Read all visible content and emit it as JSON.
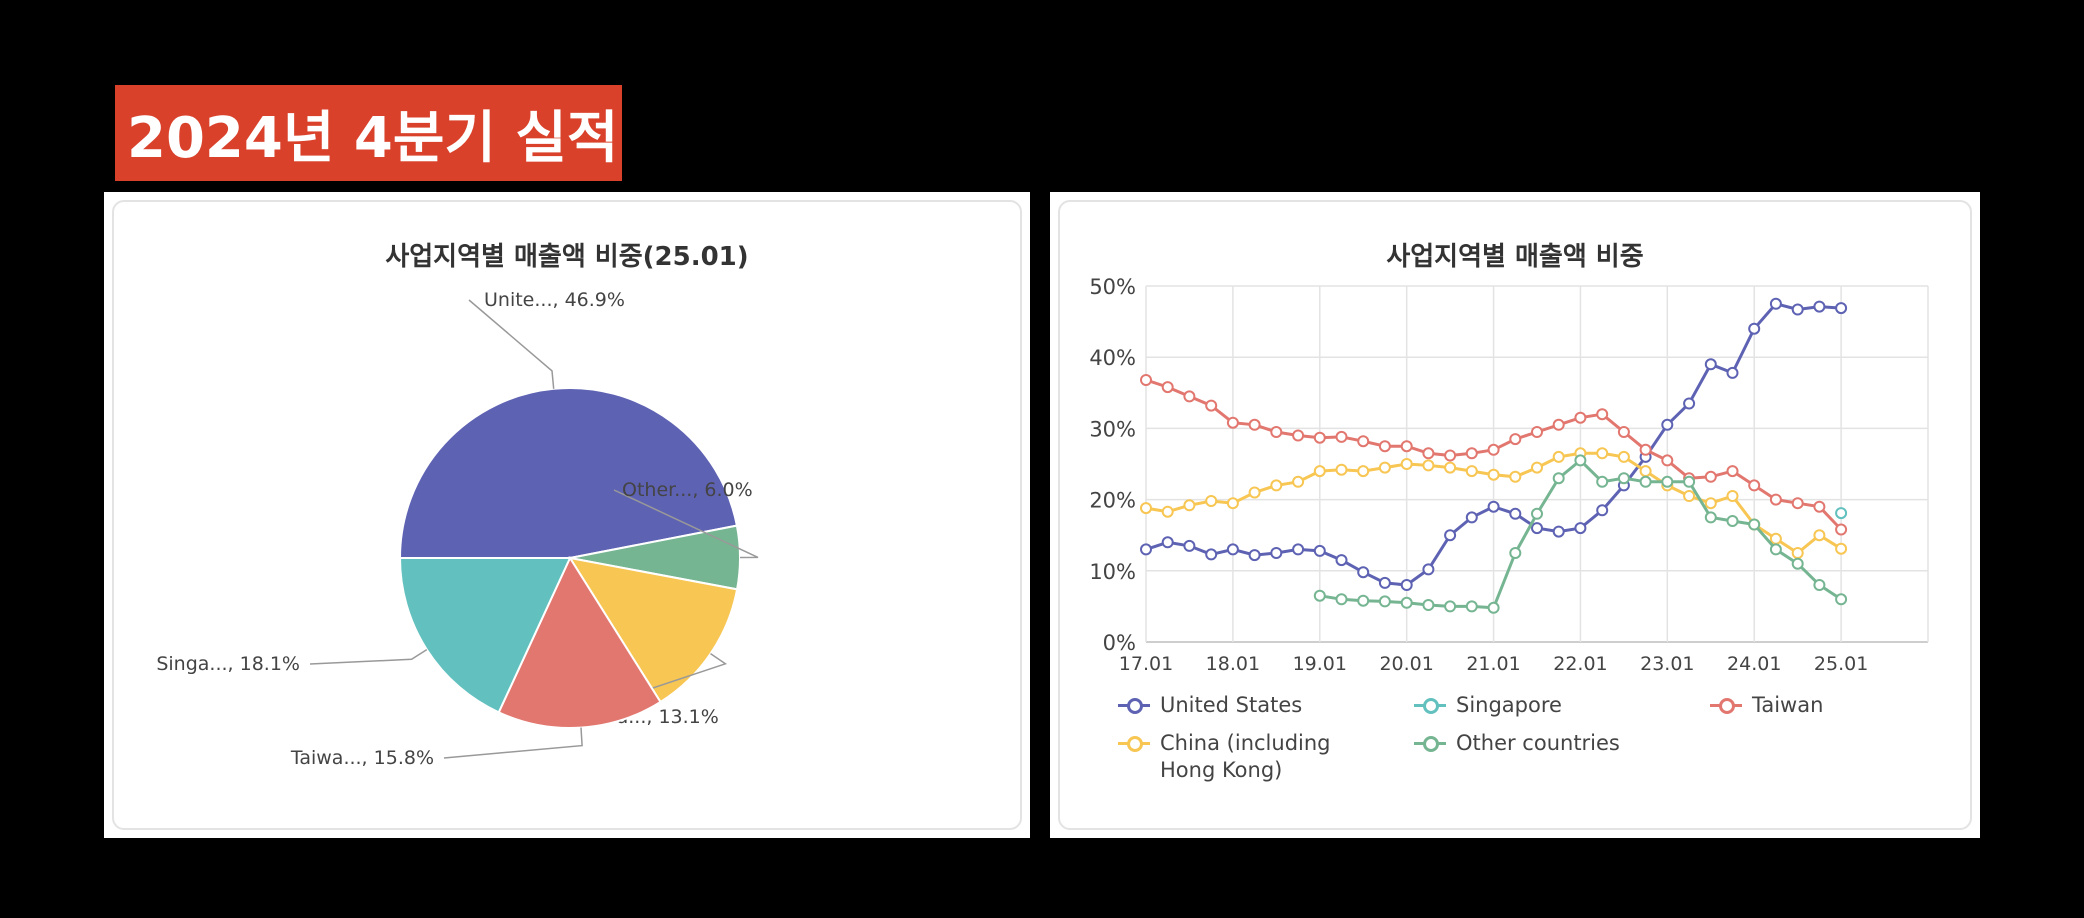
{
  "banner": {
    "title": "2024년 4분기 실적"
  },
  "chart_data": [
    {
      "type": "pie",
      "title": "사업지역별 매출액 비중(25.01)",
      "slices": [
        {
          "label": "Unite...",
          "value": 46.9,
          "display": "Unite..., 46.9%",
          "color": "#5e62b3"
        },
        {
          "label": "Other...",
          "value": 6.0,
          "display": "Other..., 6.0%",
          "color": "#76b592"
        },
        {
          "label": "China...",
          "value": 13.1,
          "display": "China..., 13.1%",
          "color": "#f7c653"
        },
        {
          "label": "Taiwa...",
          "value": 15.8,
          "display": "Taiwa..., 15.8%",
          "color": "#e2776f"
        },
        {
          "label": "Singa...",
          "value": 18.1,
          "display": "Singa..., 18.1%",
          "color": "#62c1bf"
        }
      ]
    },
    {
      "type": "line",
      "title": "사업지역별 매출액 비중",
      "ylim": [
        0,
        50
      ],
      "yticks": [
        "0%",
        "10%",
        "20%",
        "30%",
        "40%",
        "50%"
      ],
      "xticks": [
        "17.01",
        "18.01",
        "19.01",
        "20.01",
        "21.01",
        "22.01",
        "23.01",
        "24.01",
        "25.01"
      ],
      "x_start": 2017.0,
      "x_end": 2026.0,
      "series": [
        {
          "name": "United States",
          "color": "#5e62b3",
          "points": [
            [
              17.0,
              13.0
            ],
            [
              17.25,
              14.0
            ],
            [
              17.5,
              13.5
            ],
            [
              17.75,
              12.3
            ],
            [
              18.0,
              13.0
            ],
            [
              18.25,
              12.2
            ],
            [
              18.5,
              12.5
            ],
            [
              18.75,
              13.0
            ],
            [
              19.0,
              12.8
            ],
            [
              19.25,
              11.5
            ],
            [
              19.5,
              9.8
            ],
            [
              19.75,
              8.3
            ],
            [
              20.0,
              8.0
            ],
            [
              20.25,
              10.2
            ],
            [
              20.5,
              15.0
            ],
            [
              20.75,
              17.5
            ],
            [
              21.0,
              19.0
            ],
            [
              21.25,
              18.0
            ],
            [
              21.5,
              16.0
            ],
            [
              21.75,
              15.5
            ],
            [
              22.0,
              16.0
            ],
            [
              22.25,
              18.5
            ],
            [
              22.5,
              22.0
            ],
            [
              22.75,
              26.0
            ],
            [
              23.0,
              30.5
            ],
            [
              23.25,
              33.5
            ],
            [
              23.5,
              39.0
            ],
            [
              23.75,
              37.8
            ],
            [
              24.0,
              44.0
            ],
            [
              24.25,
              47.5
            ],
            [
              24.5,
              46.7
            ],
            [
              24.75,
              47.1
            ],
            [
              25.0,
              46.9
            ]
          ]
        },
        {
          "name": "Singapore",
          "color": "#62c1bf",
          "points": [
            [
              25.0,
              18.1
            ]
          ]
        },
        {
          "name": "Taiwan",
          "color": "#e2776f",
          "points": [
            [
              17.0,
              36.8
            ],
            [
              17.25,
              35.8
            ],
            [
              17.5,
              34.5
            ],
            [
              17.75,
              33.2
            ],
            [
              18.0,
              30.8
            ],
            [
              18.25,
              30.5
            ],
            [
              18.5,
              29.5
            ],
            [
              18.75,
              29.0
            ],
            [
              19.0,
              28.7
            ],
            [
              19.25,
              28.8
            ],
            [
              19.5,
              28.2
            ],
            [
              19.75,
              27.5
            ],
            [
              20.0,
              27.5
            ],
            [
              20.25,
              26.5
            ],
            [
              20.5,
              26.2
            ],
            [
              20.75,
              26.5
            ],
            [
              21.0,
              27.0
            ],
            [
              21.25,
              28.5
            ],
            [
              21.5,
              29.5
            ],
            [
              21.75,
              30.5
            ],
            [
              22.0,
              31.5
            ],
            [
              22.25,
              32.0
            ],
            [
              22.5,
              29.5
            ],
            [
              22.75,
              27.0
            ],
            [
              23.0,
              25.5
            ],
            [
              23.25,
              23.0
            ],
            [
              23.5,
              23.2
            ],
            [
              23.75,
              24.0
            ],
            [
              24.0,
              22.0
            ],
            [
              24.25,
              20.0
            ],
            [
              24.5,
              19.5
            ],
            [
              24.75,
              19.0
            ],
            [
              25.0,
              15.8
            ]
          ]
        },
        {
          "name": "China (including Hong Kong)",
          "color": "#f7c653",
          "points": [
            [
              17.0,
              18.8
            ],
            [
              17.25,
              18.3
            ],
            [
              17.5,
              19.2
            ],
            [
              17.75,
              19.8
            ],
            [
              18.0,
              19.5
            ],
            [
              18.25,
              21.0
            ],
            [
              18.5,
              22.0
            ],
            [
              18.75,
              22.5
            ],
            [
              19.0,
              24.0
            ],
            [
              19.25,
              24.2
            ],
            [
              19.5,
              24.0
            ],
            [
              19.75,
              24.5
            ],
            [
              20.0,
              25.0
            ],
            [
              20.25,
              24.8
            ],
            [
              20.5,
              24.5
            ],
            [
              20.75,
              24.0
            ],
            [
              21.0,
              23.5
            ],
            [
              21.25,
              23.2
            ],
            [
              21.5,
              24.5
            ],
            [
              21.75,
              26.0
            ],
            [
              22.0,
              26.5
            ],
            [
              22.25,
              26.5
            ],
            [
              22.5,
              26.0
            ],
            [
              22.75,
              24.0
            ],
            [
              23.0,
              22.0
            ],
            [
              23.25,
              20.5
            ],
            [
              23.5,
              19.5
            ],
            [
              23.75,
              20.5
            ],
            [
              24.0,
              16.5
            ],
            [
              24.25,
              14.5
            ],
            [
              24.5,
              12.5
            ],
            [
              24.75,
              15.0
            ],
            [
              25.0,
              13.1
            ]
          ]
        },
        {
          "name": "Other countries",
          "color": "#76b592",
          "points": [
            [
              19.0,
              6.5
            ],
            [
              19.25,
              6.0
            ],
            [
              19.5,
              5.8
            ],
            [
              19.75,
              5.7
            ],
            [
              20.0,
              5.5
            ],
            [
              20.25,
              5.2
            ],
            [
              20.5,
              5.0
            ],
            [
              20.75,
              5.0
            ],
            [
              21.0,
              4.8
            ],
            [
              21.25,
              12.5
            ],
            [
              21.5,
              18.0
            ],
            [
              21.75,
              23.0
            ],
            [
              22.0,
              25.5
            ],
            [
              22.25,
              22.5
            ],
            [
              22.5,
              23.0
            ],
            [
              22.75,
              22.5
            ],
            [
              23.0,
              22.5
            ],
            [
              23.25,
              22.5
            ],
            [
              23.5,
              17.5
            ],
            [
              23.75,
              17.0
            ],
            [
              24.0,
              16.5
            ],
            [
              24.25,
              13.0
            ],
            [
              24.5,
              11.0
            ],
            [
              24.75,
              8.0
            ],
            [
              25.0,
              6.0
            ]
          ]
        }
      ],
      "legend": [
        {
          "name": "United States",
          "color": "#5e62b3",
          "lines": [
            "United States"
          ]
        },
        {
          "name": "Singapore",
          "color": "#62c1bf",
          "lines": [
            "Singapore"
          ]
        },
        {
          "name": "Taiwan",
          "color": "#e2776f",
          "lines": [
            "Taiwan"
          ]
        },
        {
          "name": "China (including Hong Kong)",
          "color": "#f7c653",
          "lines": [
            "China (including",
            "Hong Kong)"
          ]
        },
        {
          "name": "Other countries",
          "color": "#76b592",
          "lines": [
            "Other countries"
          ]
        }
      ]
    }
  ]
}
